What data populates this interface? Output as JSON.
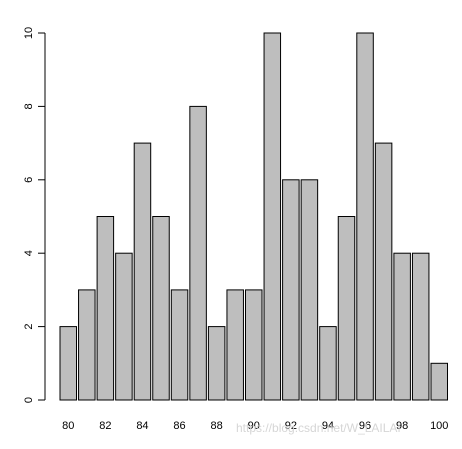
{
  "chart_data": {
    "type": "bar",
    "categories": [
      "80",
      "81",
      "82",
      "83",
      "84",
      "85",
      "86",
      "87",
      "88",
      "89",
      "90",
      "91",
      "92",
      "93",
      "94",
      "95",
      "96",
      "97",
      "98",
      "99",
      "100"
    ],
    "values": [
      2,
      3,
      5,
      4,
      7,
      5,
      3,
      8,
      2,
      3,
      3,
      10,
      6,
      6,
      2,
      5,
      10,
      7,
      4,
      4,
      1
    ],
    "x_tick_labels": [
      "80",
      "82",
      "84",
      "86",
      "88",
      "90",
      "92",
      "94",
      "96",
      "98",
      "100"
    ],
    "y_ticks": [
      0,
      2,
      4,
      6,
      8,
      10
    ],
    "ylim": [
      0,
      10
    ],
    "title": "",
    "xlabel": "",
    "ylabel": "",
    "grid": false,
    "bar_fill": "#bebebe",
    "bar_stroke": "#000000"
  },
  "watermark": "https://blog.csdn.net/W_LAILAI"
}
